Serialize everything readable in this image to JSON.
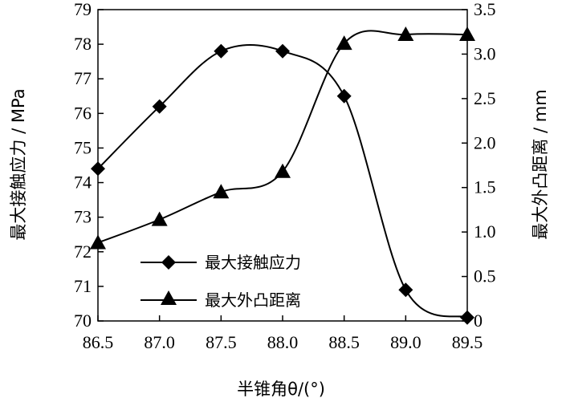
{
  "chart_data": {
    "type": "line",
    "x": [
      86.5,
      87.0,
      87.5,
      88.0,
      88.5,
      89.0,
      89.5
    ],
    "xlim": [
      86.5,
      89.5
    ],
    "x_ticks": [
      "86.5",
      "87.0",
      "87.5",
      "88.0",
      "88.5",
      "89.0",
      "89.5"
    ],
    "xlabel": "半锥角θ/(°)",
    "ylabel_left": "最大接触应力 / MPa",
    "ylabel_right": "最大外凸距离 / mm",
    "ylim_left": [
      70,
      79
    ],
    "ylim_right": [
      0,
      3.5
    ],
    "y_ticks_left": [
      "70",
      "71",
      "72",
      "73",
      "74",
      "75",
      "76",
      "77",
      "78",
      "79"
    ],
    "y_ticks_right": [
      "0",
      "0.5",
      "1.0",
      "1.5",
      "2.0",
      "2.5",
      "3.0",
      "3.5"
    ],
    "grid": false,
    "legend_position": "lower-left",
    "series": [
      {
        "name": "最大接触应力",
        "axis": "left",
        "marker": "diamond",
        "color": "#000000",
        "values": [
          74.4,
          76.2,
          77.8,
          77.8,
          76.5,
          70.9,
          70.1
        ]
      },
      {
        "name": "最大外凸距离",
        "axis": "right",
        "marker": "triangle",
        "color": "#000000",
        "values": [
          0.88,
          1.14,
          1.45,
          1.68,
          3.12,
          3.22,
          3.22
        ]
      }
    ]
  }
}
